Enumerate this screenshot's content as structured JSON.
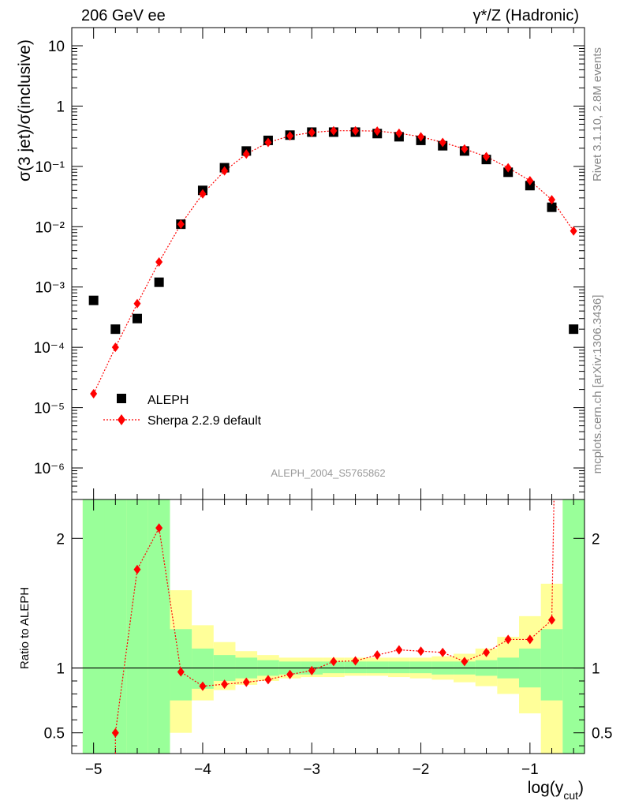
{
  "header": {
    "left": "206 GeV ee",
    "right": "γ*/Z (Hadronic)"
  },
  "side_labels": {
    "rivet": "Rivet 3.1.10,  2.8M events",
    "mcplots": "mcplots.cern.ch [arXiv:1306.3436]"
  },
  "analysis_id": "ALEPH_2004_S5765862",
  "colors": {
    "data": "#000000",
    "mc": "#ff0000",
    "band_inner": "#99ff99",
    "band_outer": "#ffff99"
  },
  "chart_data": [
    {
      "type": "scatter",
      "yscale": "log",
      "ylabel": "σ(3 jet)/σ(inclusive)",
      "xlim": [
        -5.2,
        -0.5
      ],
      "ylim": [
        3e-07,
        20
      ],
      "ytick_labels": [
        "10⁻⁶",
        "10⁻⁵",
        "10⁻⁴",
        "10⁻³",
        "10⁻²",
        "10⁻¹",
        "1",
        "10"
      ],
      "legend": {
        "placement": "bottom-left",
        "entries": [
          "ALEPH",
          "Sherpa 2.2.9 default"
        ]
      },
      "series": [
        {
          "name": "ALEPH",
          "marker": "square",
          "x": [
            -5.0,
            -4.8,
            -4.6,
            -4.4,
            -4.2,
            -4.0,
            -3.8,
            -3.6,
            -3.4,
            -3.2,
            -3.0,
            -2.8,
            -2.6,
            -2.4,
            -2.2,
            -2.0,
            -1.8,
            -1.6,
            -1.4,
            -1.2,
            -1.0,
            -0.8,
            -0.6
          ],
          "y": [
            0.0006,
            0.0002,
            0.0003,
            0.0012,
            0.011,
            0.04,
            0.095,
            0.18,
            0.27,
            0.33,
            0.37,
            0.37,
            0.37,
            0.35,
            0.31,
            0.27,
            0.22,
            0.18,
            0.13,
            0.08,
            0.048,
            0.021,
            0.0002
          ]
        },
        {
          "name": "Sherpa 2.2.9 default",
          "marker": "diamond",
          "line": "dotted",
          "x": [
            -5.0,
            -4.8,
            -4.6,
            -4.4,
            -4.2,
            -4.0,
            -3.8,
            -3.6,
            -3.4,
            -3.2,
            -3.0,
            -2.8,
            -2.6,
            -2.4,
            -2.2,
            -2.0,
            -1.8,
            -1.6,
            -1.4,
            -1.2,
            -1.0,
            -0.8,
            -0.6
          ],
          "y": [
            1.7e-05,
            0.0001,
            0.00053,
            0.0026,
            0.011,
            0.035,
            0.084,
            0.16,
            0.25,
            0.32,
            0.365,
            0.39,
            0.39,
            0.385,
            0.355,
            0.31,
            0.25,
            0.195,
            0.145,
            0.095,
            0.058,
            0.028,
            0.0085
          ]
        }
      ]
    },
    {
      "type": "line",
      "ylabel": "Ratio to ALEPH",
      "xlabel": "log(y",
      "xlabel_sub": "cut",
      "xlabel_end": ")",
      "xlim": [
        -5.2,
        -0.5
      ],
      "ylim": [
        0.34,
        2.3
      ],
      "xtick_labels": [
        "−5",
        "−4",
        "−3",
        "−2",
        "−1"
      ],
      "ytick_labels": [
        "0.5",
        "1",
        "2"
      ],
      "reference_line": 1,
      "bands": {
        "bin_edges": [
          -5.1,
          -4.9,
          -4.7,
          -4.5,
          -4.3,
          -4.1,
          -3.9,
          -3.7,
          -3.5,
          -3.3,
          -3.1,
          -2.9,
          -2.7,
          -2.5,
          -2.3,
          -2.1,
          -1.9,
          -1.7,
          -1.5,
          -1.3,
          -1.1,
          -0.9,
          -0.7,
          -0.5
        ],
        "inner": [
          [
            0.34,
            2.3
          ],
          [
            0.34,
            2.3
          ],
          [
            0.34,
            2.3
          ],
          [
            0.34,
            2.3
          ],
          [
            0.75,
            1.3
          ],
          [
            0.84,
            1.15
          ],
          [
            0.9,
            1.1
          ],
          [
            0.92,
            1.08
          ],
          [
            0.94,
            1.06
          ],
          [
            0.95,
            1.05
          ],
          [
            0.95,
            1.05
          ],
          [
            0.96,
            1.05
          ],
          [
            0.96,
            1.05
          ],
          [
            0.96,
            1.05
          ],
          [
            0.96,
            1.05
          ],
          [
            0.96,
            1.05
          ],
          [
            0.95,
            1.05
          ],
          [
            0.95,
            1.05
          ],
          [
            0.94,
            1.06
          ],
          [
            0.92,
            1.08
          ],
          [
            0.85,
            1.15
          ],
          [
            0.75,
            1.3
          ],
          [
            0.34,
            2.3
          ]
        ],
        "outer": [
          [
            0.34,
            2.3
          ],
          [
            0.34,
            2.3
          ],
          [
            0.34,
            2.3
          ],
          [
            0.34,
            2.3
          ],
          [
            0.5,
            1.6
          ],
          [
            0.75,
            1.33
          ],
          [
            0.83,
            1.2
          ],
          [
            0.87,
            1.13
          ],
          [
            0.9,
            1.1
          ],
          [
            0.92,
            1.08
          ],
          [
            0.93,
            1.08
          ],
          [
            0.93,
            1.08
          ],
          [
            0.94,
            1.08
          ],
          [
            0.94,
            1.08
          ],
          [
            0.93,
            1.08
          ],
          [
            0.92,
            1.08
          ],
          [
            0.91,
            1.09
          ],
          [
            0.89,
            1.11
          ],
          [
            0.86,
            1.15
          ],
          [
            0.8,
            1.24
          ],
          [
            0.65,
            1.4
          ],
          [
            0.34,
            1.65
          ],
          [
            0.34,
            2.3
          ]
        ]
      },
      "series": [
        {
          "name": "Sherpa 2.2.9 default",
          "marker": "diamond",
          "line": "dotted",
          "x": [
            -4.8,
            -4.6,
            -4.4,
            -4.2,
            -4.0,
            -3.8,
            -3.6,
            -3.4,
            -3.2,
            -3.0,
            -2.8,
            -2.6,
            -2.4,
            -2.2,
            -2.0,
            -1.8,
            -1.6,
            -1.4,
            -1.2,
            -1.0,
            -0.8
          ],
          "y": [
            0.5,
            1.76,
            2.08,
            0.97,
            0.86,
            0.875,
            0.89,
            0.91,
            0.95,
            0.98,
            1.05,
            1.055,
            1.1,
            1.14,
            1.13,
            1.12,
            1.05,
            1.12,
            1.22,
            1.22,
            1.37
          ]
        }
      ]
    }
  ]
}
